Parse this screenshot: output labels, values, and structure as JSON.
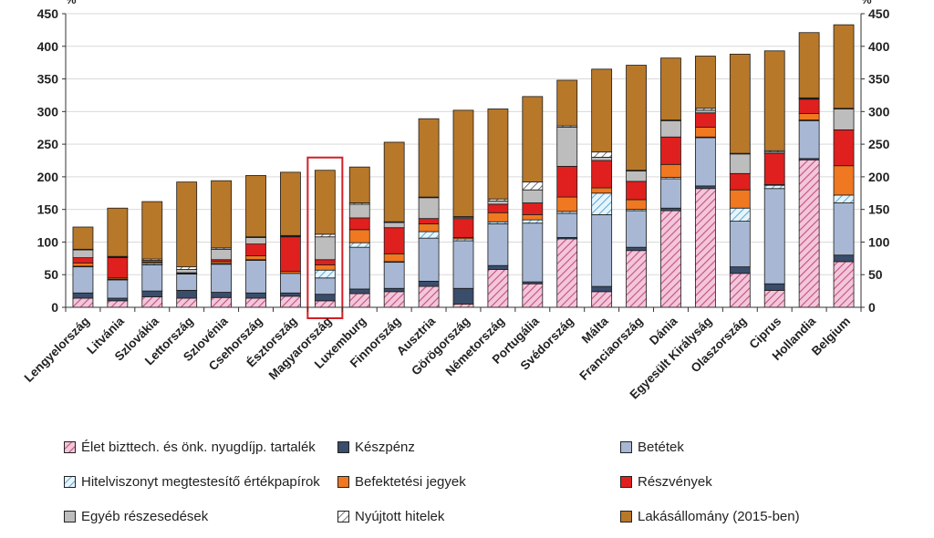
{
  "chart_data": {
    "type": "bar",
    "stacked": true,
    "unit_left": "%",
    "unit_right": "%",
    "ylim": [
      0,
      450
    ],
    "yticks": [
      0,
      50,
      100,
      150,
      200,
      250,
      300,
      350,
      400,
      450
    ],
    "categories": [
      "Lengyelország",
      "Litvánia",
      "Szlovákia",
      "Lettország",
      "Szlovénia",
      "Csehország",
      "Észtország",
      "Magyarország",
      "Luxemburg",
      "Finnország",
      "Ausztria",
      "Görögország",
      "Németország",
      "Portugália",
      "Svédország",
      "Málta",
      "Franciaország",
      "Dánia",
      "Egyesült Királyság",
      "Olaszország",
      "Ciprus",
      "Hollandia",
      "Belgium"
    ],
    "highlighted_category": "Magyarország",
    "series": [
      {
        "name": "Élet bizttech. és önk. nyugdíjp. tartalék",
        "color": "#e8a0c0",
        "pattern": "pink-hatch",
        "values": [
          14,
          10,
          16,
          14,
          15,
          14,
          17,
          10,
          21,
          24,
          32,
          5,
          58,
          36,
          105,
          24,
          87,
          148,
          182,
          52,
          26,
          226,
          70
        ]
      },
      {
        "name": "Készpénz",
        "color": "#3a4d6b",
        "pattern": "",
        "values": [
          8,
          4,
          9,
          12,
          8,
          8,
          5,
          10,
          7,
          5,
          8,
          24,
          6,
          3,
          2,
          8,
          5,
          4,
          4,
          10,
          10,
          2,
          10
        ]
      },
      {
        "name": "Betétek",
        "color": "#a8b8d4",
        "pattern": "",
        "values": [
          40,
          28,
          40,
          25,
          43,
          50,
          30,
          25,
          64,
          40,
          66,
          73,
          64,
          90,
          37,
          110,
          56,
          45,
          74,
          70,
          146,
          58,
          80
        ]
      },
      {
        "name": "Hitelviszonyt megtestesítő értékpapírok",
        "color": "#cfe9f6",
        "pattern": "blue-hatch",
        "values": [
          1,
          1,
          2,
          0,
          1,
          1,
          0,
          12,
          7,
          1,
          10,
          3,
          3,
          5,
          3,
          33,
          2,
          2,
          1,
          20,
          5,
          1,
          12
        ]
      },
      {
        "name": "Befektetési jegyek",
        "color": "#f07820",
        "pattern": "",
        "values": [
          5,
          2,
          2,
          1,
          3,
          6,
          3,
          8,
          20,
          12,
          12,
          2,
          14,
          8,
          22,
          8,
          15,
          20,
          15,
          28,
          1,
          10,
          45
        ]
      },
      {
        "name": "Részvények",
        "color": "#e0201e",
        "pattern": "",
        "values": [
          8,
          31,
          1,
          1,
          3,
          18,
          53,
          8,
          18,
          40,
          8,
          29,
          13,
          18,
          47,
          42,
          28,
          42,
          22,
          25,
          48,
          22,
          55
        ]
      },
      {
        "name": "Egyéb részesedések",
        "color": "#bdbdbd",
        "pattern": "",
        "values": [
          12,
          1,
          2,
          5,
          16,
          10,
          1,
          35,
          21,
          8,
          32,
          2,
          5,
          20,
          60,
          5,
          16,
          25,
          4,
          30,
          2,
          1,
          32
        ]
      },
      {
        "name": "Nyújtott hitelek",
        "color": "#f4f4f4",
        "pattern": "gray-hatch",
        "values": [
          1,
          1,
          2,
          4,
          2,
          1,
          1,
          4,
          2,
          1,
          1,
          1,
          3,
          12,
          2,
          8,
          1,
          1,
          3,
          1,
          2,
          1,
          1
        ]
      },
      {
        "name": "Lakásállomány (2015-ben)",
        "color": "#b8782a",
        "pattern": "",
        "values": [
          34,
          74,
          88,
          130,
          103,
          94,
          97,
          98,
          55,
          122,
          120,
          163,
          138,
          131,
          70,
          127,
          161,
          95,
          80,
          152,
          153,
          100,
          128
        ]
      }
    ]
  },
  "legend": [
    {
      "label": "Élet bizttech. és önk. nyugdíjp. tartalék"
    },
    {
      "label": "Készpénz"
    },
    {
      "label": "Betétek"
    },
    {
      "label": "Hitelviszonyt megtestesítő értékpapírok"
    },
    {
      "label": "Befektetési jegyek"
    },
    {
      "label": "Részvények"
    },
    {
      "label": "Egyéb részesedések"
    },
    {
      "label": "Nyújtott hitelek"
    },
    {
      "label": "Lakásállomány (2015-ben)"
    }
  ]
}
